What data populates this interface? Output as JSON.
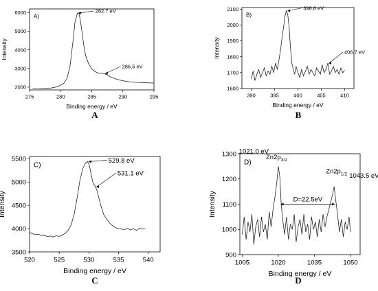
{
  "chart_data": [
    {
      "type": "line",
      "panel_label": "A)",
      "caption": "A",
      "xlabel": "Binding energy / eV",
      "ylabel": "Intensity",
      "xlim": [
        275,
        295
      ],
      "ylim": [
        1850,
        6200
      ],
      "xticks": [
        275,
        280,
        285,
        290,
        295
      ],
      "yticks": [
        2000,
        3000,
        4000,
        5000,
        6000
      ],
      "series": [
        {
          "x": [
            275.5,
            276.5,
            277.5,
            278.5,
            279.5,
            280.5,
            281.0,
            281.5,
            282.0,
            282.3,
            282.7,
            283.0,
            283.3,
            283.7,
            284.0,
            284.5,
            285.0,
            285.5,
            286.0,
            286.5,
            287.0,
            287.5,
            288.0,
            289.0,
            290.0,
            291.0,
            292.0,
            293.0,
            294.0,
            295.0
          ],
          "y": [
            1920,
            1925,
            1935,
            1955,
            2020,
            2200,
            2450,
            3100,
            4500,
            5500,
            5980,
            5900,
            5300,
            4300,
            3700,
            3250,
            2980,
            2840,
            2760,
            2740,
            2720,
            2650,
            2550,
            2420,
            2340,
            2290,
            2260,
            2240,
            2230,
            2220
          ]
        }
      ],
      "annotations": [
        {
          "text": "282.7 eV",
          "x": 282.7,
          "y": 5980
        },
        {
          "text": "286,5 eV",
          "x": 287.0,
          "y": 2740
        }
      ]
    },
    {
      "type": "line",
      "panel_label": "B)",
      "caption": "B",
      "xlabel": "Binding energy / eV",
      "ylabel": "Intensity",
      "xlim": [
        388,
        412
      ],
      "ylim": [
        1600,
        2110
      ],
      "xticks": [
        390,
        395,
        400,
        405,
        410
      ],
      "yticks": [
        1600,
        1700,
        1800,
        1900,
        2000,
        2100
      ],
      "series": [
        {
          "x": [
            390.0,
            390.4,
            390.8,
            391.2,
            391.6,
            392.0,
            392.4,
            392.8,
            393.2,
            393.6,
            394.0,
            394.4,
            394.8,
            395.2,
            395.6,
            396.0,
            396.3,
            396.6,
            396.9,
            397.2,
            397.5,
            397.8,
            398.1,
            398.4,
            398.7,
            399.0,
            399.3,
            399.6,
            400.0,
            400.4,
            400.8,
            401.2,
            401.6,
            402.0,
            402.4,
            402.8,
            403.2,
            403.6,
            404.0,
            404.4,
            404.8,
            405.2,
            405.6,
            406.0,
            406.4,
            406.8,
            407.2,
            407.6,
            408.0,
            408.4,
            408.8,
            409.2,
            409.6,
            410.0
          ],
          "y": [
            1660,
            1710,
            1650,
            1690,
            1720,
            1670,
            1700,
            1730,
            1680,
            1710,
            1690,
            1740,
            1700,
            1760,
            1720,
            1790,
            1850,
            1920,
            1980,
            2050,
            2090,
            2070,
            1990,
            1860,
            1760,
            1720,
            1690,
            1740,
            1700,
            1670,
            1720,
            1680,
            1710,
            1740,
            1690,
            1720,
            1700,
            1680,
            1730,
            1710,
            1690,
            1750,
            1700,
            1720,
            1760,
            1690,
            1710,
            1740,
            1700,
            1720,
            1690,
            1730,
            1700,
            1715
          ]
        }
      ],
      "annotations": [
        {
          "text": "398.8 eV",
          "x": 397.6,
          "y": 2090
        },
        {
          "text": "406.7 eV",
          "x": 406.4,
          "y": 1760
        }
      ]
    },
    {
      "type": "line",
      "panel_label": "C)",
      "caption": "C",
      "xlabel": "Binding energy / eV",
      "ylabel": "Intensity",
      "xlim": [
        520,
        542
      ],
      "ylim": [
        3500,
        5550
      ],
      "xticks": [
        520,
        525,
        530,
        535,
        540
      ],
      "yticks": [
        3500,
        4000,
        4500,
        5000,
        5500
      ],
      "series": [
        {
          "x": [
            520.0,
            520.5,
            521.0,
            521.5,
            522.0,
            522.5,
            523.0,
            523.5,
            524.0,
            524.5,
            525.0,
            525.5,
            526.0,
            526.5,
            527.0,
            527.5,
            528.0,
            528.5,
            529.0,
            529.5,
            529.8,
            530.1,
            530.4,
            530.7,
            531.1,
            531.4,
            531.7,
            532.0,
            532.5,
            533.0,
            533.5,
            534.0,
            534.5,
            535.0,
            535.5,
            536.0,
            536.5,
            537.0,
            537.5,
            538.0,
            538.5,
            539.0,
            539.5
          ],
          "y": [
            3920,
            3890,
            3870,
            3880,
            3850,
            3860,
            3830,
            3840,
            3820,
            3850,
            3830,
            3860,
            3900,
            3960,
            4080,
            4300,
            4650,
            5050,
            5300,
            5420,
            5440,
            5350,
            5150,
            4980,
            4900,
            4800,
            4650,
            4500,
            4300,
            4200,
            4120,
            4060,
            4020,
            4000,
            3990,
            3980,
            4010,
            3970,
            4000,
            3960,
            4010,
            3990,
            4000
          ]
        }
      ],
      "annotations": [
        {
          "text": "529.8 eV",
          "x": 529.8,
          "y": 5440
        },
        {
          "text": "531.1 eV",
          "x": 531.1,
          "y": 4900
        }
      ]
    },
    {
      "type": "line",
      "panel_label": "D)",
      "caption": "D",
      "xlabel": "Binding energy / eV",
      "ylabel": "Intensity",
      "xlim": [
        1004,
        1054
      ],
      "ylim": [
        900,
        1300
      ],
      "xticks": [
        1005,
        1020,
        1035,
        1050
      ],
      "yticks": [
        900,
        1000,
        1100,
        1200,
        1300
      ],
      "series": [
        {
          "x": [
            1005.0,
            1005.8,
            1006.6,
            1007.4,
            1008.2,
            1009.0,
            1009.8,
            1010.6,
            1011.4,
            1012.2,
            1013.0,
            1013.8,
            1014.6,
            1015.4,
            1016.2,
            1017.0,
            1017.8,
            1018.6,
            1019.4,
            1020.0,
            1020.6,
            1021.2,
            1021.8,
            1022.6,
            1023.4,
            1024.2,
            1025.0,
            1025.8,
            1026.6,
            1027.4,
            1028.2,
            1029.0,
            1029.8,
            1030.6,
            1031.4,
            1032.2,
            1033.0,
            1033.8,
            1034.6,
            1035.4,
            1036.2,
            1037.0,
            1037.8,
            1038.6,
            1039.4,
            1040.2,
            1041.0,
            1041.8,
            1042.6,
            1043.2,
            1043.8,
            1044.6,
            1045.4,
            1046.2,
            1047.0,
            1047.8,
            1048.6,
            1049.4,
            1050.0
          ],
          "y": [
            980,
            1050,
            960,
            1030,
            990,
            1060,
            940,
            1010,
            1040,
            970,
            1050,
            990,
            1020,
            960,
            1070,
            1010,
            1080,
            1130,
            1190,
            1250,
            1210,
            1100,
            1040,
            980,
            1050,
            960,
            1020,
            1000,
            1060,
            950,
            1010,
            1040,
            980,
            1060,
            990,
            1020,
            960,
            1050,
            1000,
            1030,
            970,
            1040,
            990,
            1060,
            1010,
            1050,
            1080,
            1110,
            1140,
            1170,
            1120,
            1060,
            990,
            1040,
            970,
            1030,
            1000,
            1050,
            990
          ]
        }
      ],
      "annotations": [
        {
          "text": "1021.0 eV",
          "x": 1020.0,
          "y": 1250
        },
        {
          "text": "1043.5 eV",
          "x": 1043.2,
          "y": 1170
        },
        {
          "text": "D=22.5eV",
          "x1": 1021.0,
          "x2": 1043.5,
          "y": 1100
        }
      ],
      "peak_labels": [
        {
          "base": "Zn2p",
          "sub": "3/2"
        },
        {
          "base": "Zn2p",
          "sub": "1/2"
        }
      ]
    }
  ]
}
